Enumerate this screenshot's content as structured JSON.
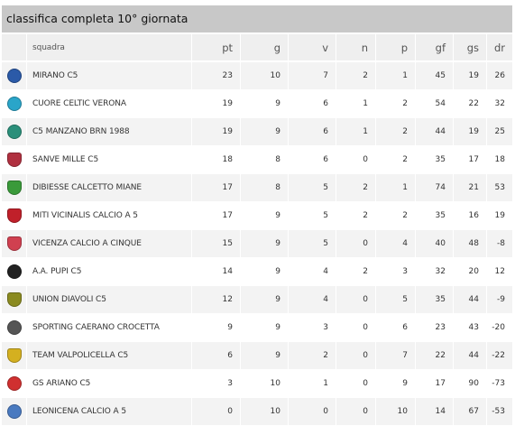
{
  "title": "classifica completa 10° giornata",
  "columns": [
    "",
    "squadra",
    "pt",
    "g",
    "v",
    "n",
    "p",
    "gf",
    "gs",
    "dr"
  ],
  "teams": [
    {
      "name": "MIRANO C5",
      "pt": "23",
      "g": "10",
      "v": "7",
      "n": "2",
      "p": "1",
      "gf": "45",
      "gs": "19",
      "dr": "26",
      "logo": "mirano-c5-logo",
      "color": "#2b5aa8",
      "shape": "round"
    },
    {
      "name": "CUORE CELTIC VERONA",
      "pt": "19",
      "g": "9",
      "v": "6",
      "n": "1",
      "p": "2",
      "gf": "54",
      "gs": "22",
      "dr": "32",
      "logo": "cuore-celtic-verona-logo",
      "color": "#2aa5c9",
      "shape": "round"
    },
    {
      "name": "C5 MANZANO BRN 1988",
      "pt": "19",
      "g": "9",
      "v": "6",
      "n": "1",
      "p": "2",
      "gf": "44",
      "gs": "19",
      "dr": "25",
      "logo": "c5-manzano-logo",
      "color": "#2a8f7a",
      "shape": "round"
    },
    {
      "name": "SANVE MILLE C5",
      "pt": "18",
      "g": "8",
      "v": "6",
      "n": "0",
      "p": "2",
      "gf": "35",
      "gs": "17",
      "dr": "18",
      "logo": "sanve-mille-logo",
      "color": "#b03040",
      "shape": "shield"
    },
    {
      "name": "DIBIESSE CALCETTO MIANE",
      "pt": "17",
      "g": "8",
      "v": "5",
      "n": "2",
      "p": "1",
      "gf": "74",
      "gs": "21",
      "dr": "53",
      "logo": "dibiesse-miane-logo",
      "color": "#3a9a3a",
      "shape": "shield"
    },
    {
      "name": "MITI VICINALIS CALCIO A 5",
      "pt": "17",
      "g": "9",
      "v": "5",
      "n": "2",
      "p": "2",
      "gf": "35",
      "gs": "16",
      "dr": "19",
      "logo": "miti-vicinalis-logo",
      "color": "#c0202a",
      "shape": "shield"
    },
    {
      "name": "VICENZA CALCIO A CINQUE",
      "pt": "15",
      "g": "9",
      "v": "5",
      "n": "0",
      "p": "4",
      "gf": "40",
      "gs": "48",
      "dr": "-8",
      "logo": "vicenza-calcio-logo",
      "color": "#d04050",
      "shape": "shield"
    },
    {
      "name": "A.A. PUPI C5",
      "pt": "14",
      "g": "9",
      "v": "4",
      "n": "2",
      "p": "3",
      "gf": "32",
      "gs": "20",
      "dr": "12",
      "logo": "aa-pupi-logo",
      "color": "#222222",
      "shape": "round"
    },
    {
      "name": "UNION DIAVOLI C5",
      "pt": "12",
      "g": "9",
      "v": "4",
      "n": "0",
      "p": "5",
      "gf": "35",
      "gs": "44",
      "dr": "-9",
      "logo": "union-diavoli-logo",
      "color": "#8a8a20",
      "shape": "shield"
    },
    {
      "name": "SPORTING CAERANO CROCETTA",
      "pt": "9",
      "g": "9",
      "v": "3",
      "n": "0",
      "p": "6",
      "gf": "23",
      "gs": "43",
      "dr": "-20",
      "logo": "sporting-caerano-logo",
      "color": "#555555",
      "shape": "round"
    },
    {
      "name": "TEAM VALPOLICELLA C5",
      "pt": "6",
      "g": "9",
      "v": "2",
      "n": "0",
      "p": "7",
      "gf": "22",
      "gs": "44",
      "dr": "-22",
      "logo": "team-valpolicella-logo",
      "color": "#d4b020",
      "shape": "shield"
    },
    {
      "name": "GS ARIANO C5",
      "pt": "3",
      "g": "10",
      "v": "1",
      "n": "0",
      "p": "9",
      "gf": "17",
      "gs": "90",
      "dr": "-73",
      "logo": "gs-ariano-logo",
      "color": "#d03030",
      "shape": "round"
    },
    {
      "name": "LEONICENA CALCIO A 5",
      "pt": "0",
      "g": "10",
      "v": "0",
      "n": "0",
      "p": "10",
      "gf": "14",
      "gs": "67",
      "dr": "-53",
      "logo": "leonicena-logo",
      "color": "#4a7ac0",
      "shape": "round"
    }
  ]
}
